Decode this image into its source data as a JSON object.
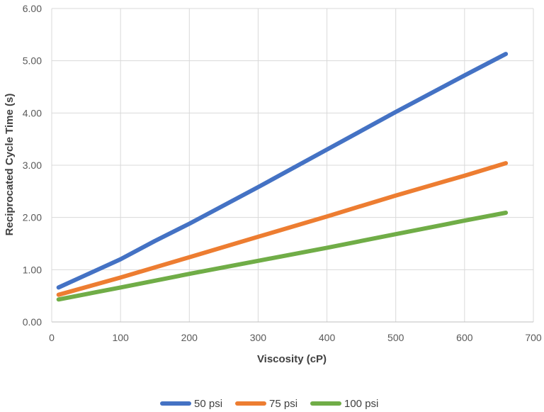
{
  "chart_data": {
    "type": "line",
    "xlabel": "Viscosity (cP)",
    "ylabel": "Reciprocated Cycle Time (s)",
    "xlim": [
      0,
      700
    ],
    "ylim": [
      0,
      6
    ],
    "x_ticks": [
      "0",
      "100",
      "200",
      "300",
      "400",
      "500",
      "600",
      "700"
    ],
    "y_ticks": [
      "0.00",
      "1.00",
      "2.00",
      "3.00",
      "4.00",
      "5.00",
      "6.00"
    ],
    "grid": true,
    "legend_position": "bottom",
    "series": [
      {
        "name": "50 psi",
        "color": "#4472C4",
        "x": [
          10,
          50,
          100,
          150,
          200,
          300,
          400,
          500,
          600,
          660
        ],
        "y": [
          0.66,
          0.9,
          1.2,
          1.55,
          1.88,
          2.58,
          3.3,
          4.02,
          4.72,
          5.13
        ]
      },
      {
        "name": "75 psi",
        "color": "#ED7D31",
        "x": [
          10,
          100,
          200,
          300,
          400,
          500,
          600,
          660
        ],
        "y": [
          0.52,
          0.85,
          1.24,
          1.63,
          2.02,
          2.42,
          2.8,
          3.04
        ]
      },
      {
        "name": "100 psi",
        "color": "#70AD47",
        "x": [
          10,
          100,
          200,
          300,
          400,
          500,
          600,
          660
        ],
        "y": [
          0.43,
          0.66,
          0.92,
          1.17,
          1.42,
          1.68,
          1.94,
          2.09
        ]
      }
    ]
  }
}
